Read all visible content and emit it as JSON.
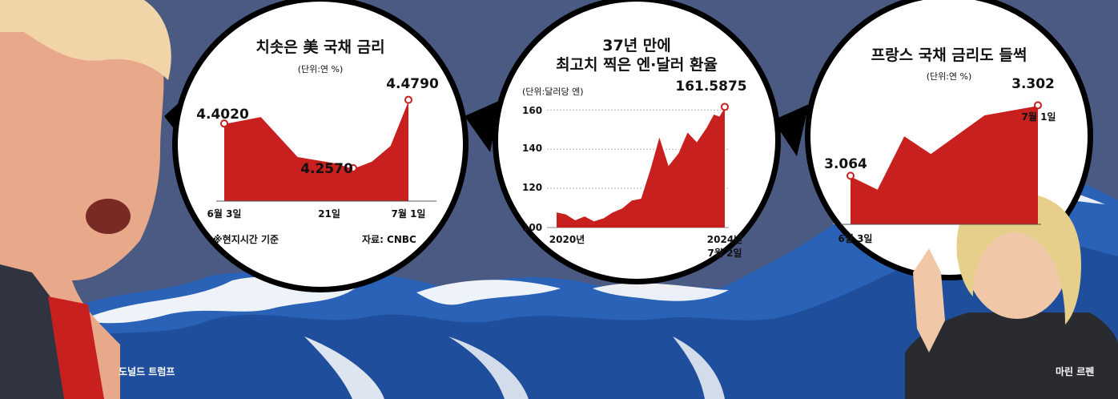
{
  "captions": {
    "left_person": "도널드 트럼프",
    "right_person": "마린 르펜"
  },
  "colors": {
    "background": "#4a5a82",
    "area": "#c8201e",
    "wave": "#2a62b8",
    "foam": "#ffffff"
  },
  "chart_data": [
    {
      "type": "area",
      "title": "치솟은 美 국채 금리",
      "unit": "(단위:연 %)",
      "x_ticks": [
        "6월 3일",
        "21일",
        "7월 1일"
      ],
      "note": "※현지시간 기준",
      "source": "자료: CNBC",
      "ylim": [
        4.15,
        4.53
      ],
      "points": [
        {
          "t": 0,
          "v": 4.402,
          "label": "4.4020"
        },
        {
          "t": 2,
          "v": 4.425
        },
        {
          "t": 4,
          "v": 4.295
        },
        {
          "t": 6,
          "v": 4.275
        },
        {
          "t": 7,
          "v": 4.257,
          "label": "4.2570"
        },
        {
          "t": 8,
          "v": 4.28
        },
        {
          "t": 9,
          "v": 4.33
        },
        {
          "t": 10,
          "v": 4.479,
          "label": "4.4790"
        }
      ]
    },
    {
      "type": "area",
      "title_lines": [
        "37년 만에",
        "최고치 찍은 엔·달러 환율"
      ],
      "unit": "(단위:달러당 엔)",
      "y_ticks": [
        "160",
        "140",
        "120",
        "100"
      ],
      "ylim": [
        100,
        165
      ],
      "x_ticks": [
        "2020년",
        "2024년",
        "7월 2일"
      ],
      "last_value_label": "161.5875",
      "points": [
        [
          0,
          108
        ],
        [
          0.25,
          107
        ],
        [
          0.5,
          104
        ],
        [
          0.75,
          106
        ],
        [
          1,
          103.5
        ],
        [
          1.25,
          105
        ],
        [
          1.5,
          108
        ],
        [
          1.75,
          110
        ],
        [
          2,
          114
        ],
        [
          2.25,
          115
        ],
        [
          2.5,
          130
        ],
        [
          2.75,
          147
        ],
        [
          3,
          132
        ],
        [
          3.25,
          138
        ],
        [
          3.5,
          149
        ],
        [
          3.75,
          144
        ],
        [
          4,
          151
        ],
        [
          4.2,
          158
        ],
        [
          4.35,
          157
        ],
        [
          4.5,
          161.5875
        ]
      ]
    },
    {
      "type": "area",
      "title": "프랑스 국채 금리도 들썩",
      "unit": "(단위:연 %)",
      "x_ticks": [
        "6월 3일",
        "7월 1일"
      ],
      "ylim": [
        2.9,
        3.36
      ],
      "points": [
        {
          "t": 0,
          "v": 3.064,
          "label": "3.064"
        },
        {
          "t": 1,
          "v": 3.02
        },
        {
          "t": 2,
          "v": 3.2
        },
        {
          "t": 3,
          "v": 3.14
        },
        {
          "t": 5,
          "v": 3.27
        },
        {
          "t": 7,
          "v": 3.302,
          "label": "3.302"
        }
      ]
    }
  ]
}
